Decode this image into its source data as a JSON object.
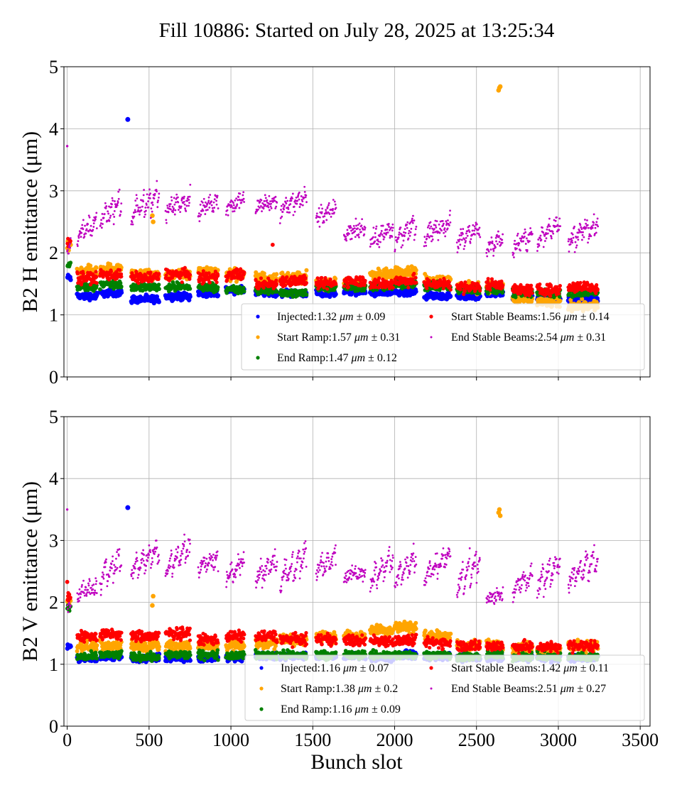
{
  "chart_data": {
    "type": "scatter",
    "title": "Fill 10886: Started on July 28, 2025 at 13:25:34",
    "xlabel": "Bunch slot",
    "xticks": [
      0,
      500,
      1000,
      1500,
      2000,
      2500,
      3000,
      3500
    ],
    "yticks": [
      0,
      1,
      2,
      3,
      4,
      5
    ],
    "xlim": [
      -20,
      3560
    ],
    "ylim": [
      0,
      5
    ],
    "grid": true,
    "legend_placement": "lower-right",
    "colors": {
      "injected": "#0000ff",
      "start_ramp": "#ffa500",
      "end_ramp": "#008000",
      "start_stable": "#ff0000",
      "end_stable": "#bf00bf"
    },
    "trains": [
      [
        0,
        20
      ],
      [
        60,
        180
      ],
      [
        200,
        330
      ],
      [
        390,
        560
      ],
      [
        600,
        750
      ],
      [
        800,
        920
      ],
      [
        970,
        1080
      ],
      [
        1150,
        1280
      ],
      [
        1300,
        1460
      ],
      [
        1520,
        1640
      ],
      [
        1690,
        1820
      ],
      [
        1850,
        1990
      ],
      [
        2000,
        2130
      ],
      [
        2180,
        2340
      ],
      [
        2380,
        2520
      ],
      [
        2560,
        2660
      ],
      [
        2720,
        2840
      ],
      [
        2870,
        3010
      ],
      [
        3060,
        3240
      ]
    ],
    "panels": [
      {
        "ylabel": "B2 H emittance (μm)",
        "series": [
          {
            "key": "injected",
            "name": "Injected:1.32 μm ± 0.09",
            "label": "Injected:1.32",
            "mean": "1.32",
            "std": "0.09",
            "levels": [
              1.6,
              1.3,
              1.35,
              1.25,
              1.3,
              1.35,
              1.4,
              1.35,
              1.35,
              1.35,
              1.38,
              1.35,
              1.35,
              1.3,
              1.3,
              1.35,
              1.3,
              1.25,
              1.25
            ],
            "outliers": [
              [
                370,
                4.15
              ]
            ]
          },
          {
            "key": "start_ramp",
            "name": "Start Ramp:1.57 μm ± 0.31",
            "label": "Start Ramp:1.57",
            "mean": "1.57",
            "std": "0.31",
            "levels": [
              2.1,
              1.7,
              1.75,
              1.65,
              1.65,
              1.7,
              1.65,
              1.6,
              1.6,
              1.5,
              1.5,
              1.65,
              1.7,
              1.55,
              1.45,
              1.45,
              1.25,
              1.2,
              1.15
            ],
            "outliers": [
              [
                2635,
                4.62
              ],
              [
                2640,
                4.66
              ],
              [
                2645,
                4.68
              ],
              [
                525,
                2.5
              ],
              [
                520,
                2.6
              ]
            ]
          },
          {
            "key": "end_ramp",
            "name": "End Ramp:1.47 μm ± 0.12",
            "label": "End Ramp:1.47",
            "mean": "1.47",
            "std": "0.12",
            "levels": [
              1.8,
              1.45,
              1.5,
              1.45,
              1.45,
              1.45,
              1.4,
              1.4,
              1.35,
              1.45,
              1.45,
              1.45,
              1.5,
              1.45,
              1.4,
              1.4,
              1.35,
              1.35,
              1.35
            ],
            "outliers": []
          },
          {
            "key": "start_stable",
            "name": "Start Stable Beams:1.56 μm ± 0.14",
            "label": "Start Stable Beams:1.56",
            "mean": "1.56",
            "std": "0.14",
            "levels": [
              2.2,
              1.6,
              1.65,
              1.6,
              1.65,
              1.6,
              1.65,
              1.5,
              1.55,
              1.5,
              1.55,
              1.5,
              1.55,
              1.5,
              1.45,
              1.5,
              1.4,
              1.4,
              1.45
            ],
            "outliers": [
              [
                1255,
                2.13
              ]
            ]
          },
          {
            "key": "end_stable",
            "name": "End Stable Beams:2.54 μm ± 0.31",
            "label": "End Stable Beams:2.54",
            "mean": "2.54",
            "std": "0.31",
            "ramps": [
              [
                2.0,
                2.2
              ],
              [
                2.2,
                2.6
              ],
              [
                2.4,
                3.0
              ],
              [
                2.5,
                3.1
              ],
              [
                2.6,
                3.0
              ],
              [
                2.6,
                2.95
              ],
              [
                2.7,
                2.9
              ],
              [
                2.7,
                2.9
              ],
              [
                2.6,
                3.0
              ],
              [
                2.5,
                2.8
              ],
              [
                2.2,
                2.5
              ],
              [
                2.1,
                2.5
              ],
              [
                2.1,
                2.6
              ],
              [
                2.2,
                2.6
              ],
              [
                2.1,
                2.5
              ],
              [
                2.0,
                2.3
              ],
              [
                2.0,
                2.4
              ],
              [
                2.1,
                2.6
              ],
              [
                2.1,
                2.6
              ]
            ],
            "outliers": [
              [
                0,
                3.72
              ]
            ]
          }
        ]
      },
      {
        "ylabel": "B2 V emittance (μm)",
        "series": [
          {
            "key": "injected",
            "name": "Injected:1.16 μm ± 0.07",
            "label": "Injected:1.16",
            "mean": "1.16",
            "std": "0.07",
            "levels": [
              1.3,
              1.1,
              1.12,
              1.1,
              1.1,
              1.1,
              1.1,
              1.13,
              1.13,
              1.13,
              1.13,
              1.1,
              1.15,
              1.12,
              1.1,
              1.1,
              1.1,
              1.1,
              1.1
            ],
            "outliers": [
              [
                370,
                3.53
              ]
            ]
          },
          {
            "key": "start_ramp",
            "name": "Start Ramp:1.38 μm ± 0.2",
            "label": "Start Ramp:1.38",
            "mean": "1.38",
            "std": "0.2",
            "levels": [
              2.0,
              1.3,
              1.3,
              1.3,
              1.3,
              1.3,
              1.3,
              1.35,
              1.4,
              1.45,
              1.45,
              1.55,
              1.6,
              1.45,
              1.3,
              1.3,
              1.25,
              1.25,
              1.3
            ],
            "outliers": [
              [
                2635,
                3.45
              ],
              [
                2640,
                3.5
              ],
              [
                2645,
                3.4
              ],
              [
                520,
                1.95
              ],
              [
                525,
                2.1
              ]
            ]
          },
          {
            "key": "end_ramp",
            "name": "End Ramp:1.16 μm ± 0.09",
            "label": "End Ramp:1.16",
            "mean": "1.16",
            "std": "0.09",
            "levels": [
              1.9,
              1.12,
              1.15,
              1.12,
              1.15,
              1.15,
              1.15,
              1.15,
              1.15,
              1.15,
              1.15,
              1.15,
              1.15,
              1.15,
              1.12,
              1.15,
              1.12,
              1.12,
              1.12
            ],
            "outliers": []
          },
          {
            "key": "start_stable",
            "name": "Start Stable Beams:1.42 μm ± 0.11",
            "label": "Start Stable Beams:1.42",
            "mean": "1.42",
            "std": "0.11",
            "levels": [
              2.1,
              1.45,
              1.48,
              1.45,
              1.5,
              1.4,
              1.45,
              1.45,
              1.4,
              1.4,
              1.38,
              1.38,
              1.38,
              1.35,
              1.3,
              1.3,
              1.28,
              1.28,
              1.3
            ],
            "outliers": [
              [
                0,
                2.33
              ]
            ]
          },
          {
            "key": "end_stable",
            "name": "End Stable Beams:2.51 μm ± 0.27",
            "label": "End Stable Beams:2.51",
            "mean": "2.51",
            "std": "0.27",
            "ramps": [
              [
                1.9,
                2.1
              ],
              [
                2.1,
                2.3
              ],
              [
                2.2,
                2.9
              ],
              [
                2.4,
                3.0
              ],
              [
                2.4,
                3.1
              ],
              [
                2.5,
                2.8
              ],
              [
                2.3,
                2.8
              ],
              [
                2.3,
                2.8
              ],
              [
                2.2,
                3.0
              ],
              [
                2.4,
                2.9
              ],
              [
                2.4,
                2.5
              ],
              [
                2.2,
                2.9
              ],
              [
                2.2,
                2.9
              ],
              [
                2.3,
                2.9
              ],
              [
                2.1,
                2.9
              ],
              [
                2.0,
                2.2
              ],
              [
                2.1,
                2.6
              ],
              [
                2.1,
                2.9
              ],
              [
                2.2,
                2.9
              ]
            ],
            "outliers": [
              [
                0,
                3.5
              ]
            ]
          }
        ]
      }
    ],
    "legend_unit": "μm",
    "legend_pm": "±"
  }
}
